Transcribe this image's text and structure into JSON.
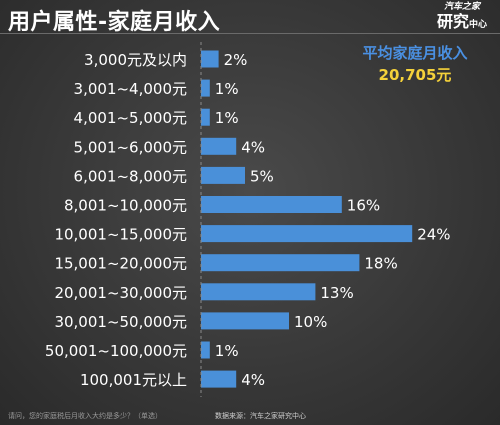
{
  "title": "用户属性-家庭月收入",
  "logo": {
    "top": "汽车之家",
    "main": "研究",
    "sub": "中心"
  },
  "average": {
    "label": "平均家庭月收入",
    "value": "20,705元"
  },
  "footer": {
    "question": "请问，您的家庭税后月收入大约是多少？（单选）",
    "source": "数据来源：汽车之家研究中心"
  },
  "colors": {
    "bar": "#4a90d9",
    "label": "#ffffff",
    "avg_label": "#4a90e2",
    "avg_value": "#f5d23a"
  },
  "chart_data": {
    "type": "bar",
    "orientation": "horizontal",
    "categories": [
      "3,000元及以内",
      "3,001~4,000元",
      "4,001~5,000元",
      "5,001~6,000元",
      "6,001~8,000元",
      "8,001~10,000元",
      "10,001~15,000元",
      "15,001~20,000元",
      "20,001~30,000元",
      "30,001~50,000元",
      "50,001~100,000元",
      "100,001元以上"
    ],
    "values": [
      2,
      1,
      1,
      4,
      5,
      16,
      24,
      18,
      13,
      10,
      1,
      4
    ],
    "value_labels": [
      "2%",
      "1%",
      "1%",
      "4%",
      "5%",
      "16%",
      "24%",
      "18%",
      "13%",
      "10%",
      "1%",
      "4%"
    ],
    "unit": "%",
    "xlim": [
      0,
      24
    ],
    "grid": false
  }
}
